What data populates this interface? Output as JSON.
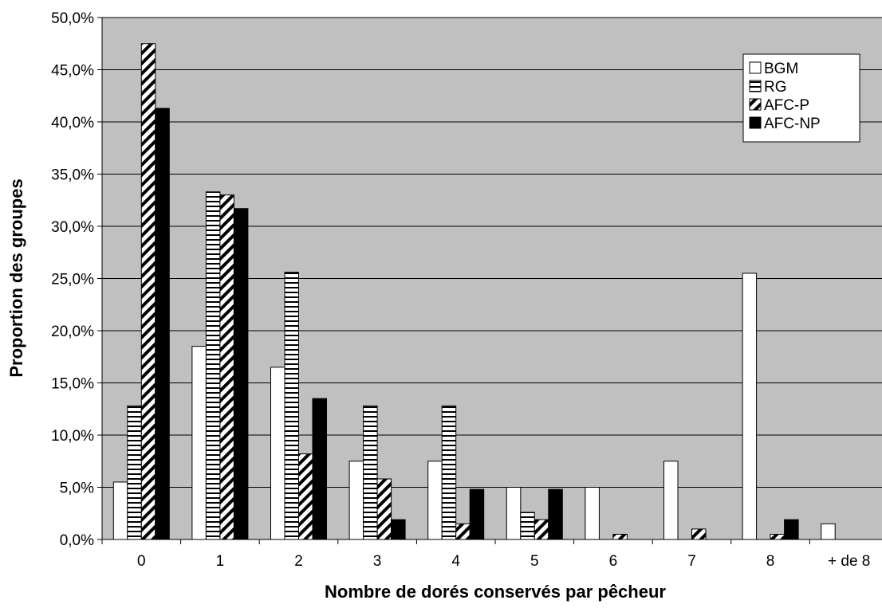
{
  "chart_data": {
    "type": "bar",
    "title": "",
    "xlabel": "Nombre de dorés conservés par pêcheur",
    "ylabel": "Proportion des groupes",
    "categories": [
      "0",
      "1",
      "2",
      "3",
      "4",
      "5",
      "6",
      "7",
      "8",
      "+ de 8"
    ],
    "ylim": [
      0,
      50
    ],
    "yticks": [
      "0,0%",
      "5,0%",
      "10,0%",
      "15,0%",
      "20,0%",
      "25,0%",
      "30,0%",
      "35,0%",
      "40,0%",
      "45,0%",
      "50,0%"
    ],
    "grid": "horizontal",
    "legend_position": "top-right",
    "plot_background": "#c0c0c0",
    "series": [
      {
        "name": "BGM",
        "pattern": "solid-white",
        "values": [
          5.5,
          18.5,
          16.5,
          7.5,
          7.5,
          5.0,
          5.0,
          7.5,
          25.5,
          1.5
        ]
      },
      {
        "name": "RG",
        "pattern": "horizontal-stripes",
        "values": [
          12.8,
          33.3,
          25.6,
          12.8,
          12.8,
          2.6,
          0,
          0,
          0,
          0
        ]
      },
      {
        "name": "AFC-P",
        "pattern": "diagonal-stripes",
        "values": [
          47.5,
          33.0,
          8.2,
          5.8,
          1.5,
          1.9,
          0.5,
          1.0,
          0.5,
          0
        ]
      },
      {
        "name": "AFC-NP",
        "pattern": "solid-black",
        "values": [
          41.3,
          31.7,
          13.5,
          1.9,
          4.8,
          4.8,
          0,
          0,
          1.9,
          0
        ]
      }
    ]
  }
}
